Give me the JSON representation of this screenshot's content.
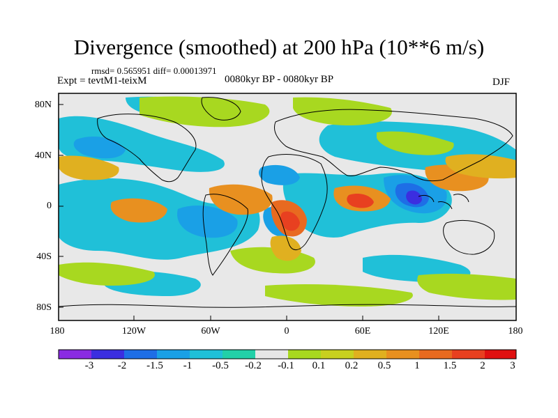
{
  "title": "Divergence (smoothed) at 200 hPa (10**6 m/s)",
  "stats": "rmsd= 0.565951 diff= 0.00013971",
  "experiment": "Expt = tevtM1-teixM",
  "period": "0080kyr BP - 0080kyr BP",
  "season": "DJF",
  "map": {
    "projection": "cylindrical equidistant",
    "lat_ticks": [
      "80N",
      "40N",
      "0",
      "40S",
      "80S"
    ],
    "lon_ticks": [
      "180",
      "120W",
      "60W",
      "0",
      "60E",
      "120E",
      "180"
    ],
    "colors": {
      "ocean_background": "#e8e8e8",
      "coastline": "#000000",
      "frame": "#000000"
    }
  },
  "colorbar": {
    "labels": [
      "-3",
      "-2",
      "-1.5",
      "-1",
      "-0.5",
      "-0.2",
      "-0.1",
      "0.1",
      "0.2",
      "0.5",
      "1",
      "1.5",
      "2",
      "3"
    ],
    "colors": [
      "#8a2be2",
      "#3b2ee0",
      "#1e6ee6",
      "#1aa0e6",
      "#20c0d8",
      "#22d0a8",
      "#e6e6e6",
      "#a8d820",
      "#c8d020",
      "#e0b020",
      "#e89020",
      "#e86a20",
      "#e84020",
      "#e01010"
    ]
  }
}
